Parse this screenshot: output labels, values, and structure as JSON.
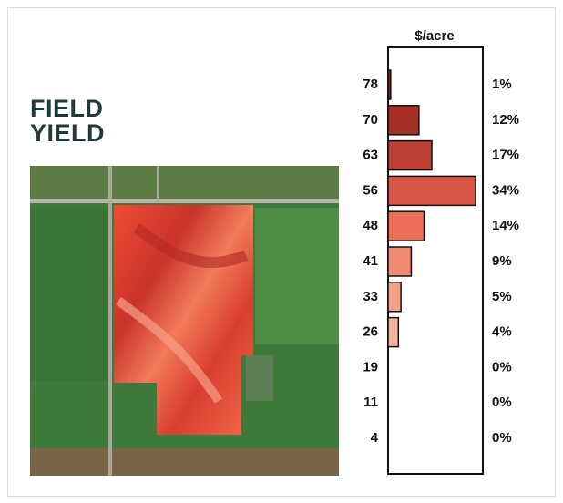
{
  "chart_data": {
    "type": "bar",
    "orientation": "horizontal",
    "title": "FIELD YIELD",
    "axis_label": "$/acre",
    "categories": [
      "78",
      "70",
      "63",
      "56",
      "48",
      "41",
      "33",
      "26",
      "19",
      "11",
      "4"
    ],
    "values": [
      1,
      12,
      17,
      34,
      14,
      9,
      5,
      4,
      0,
      0,
      0
    ],
    "value_labels": [
      "1%",
      "12%",
      "17%",
      "34%",
      "14%",
      "9%",
      "5%",
      "4%",
      "0%",
      "0%",
      "0%"
    ],
    "colors": [
      "#8b1a1a",
      "#a52e26",
      "#bd4236",
      "#d85646",
      "#ec6d58",
      "#f08a72",
      "#f4a088",
      "#f6b39e",
      "#f8c4b2",
      "#f9d2c4",
      "#fbe0d6"
    ]
  }
}
